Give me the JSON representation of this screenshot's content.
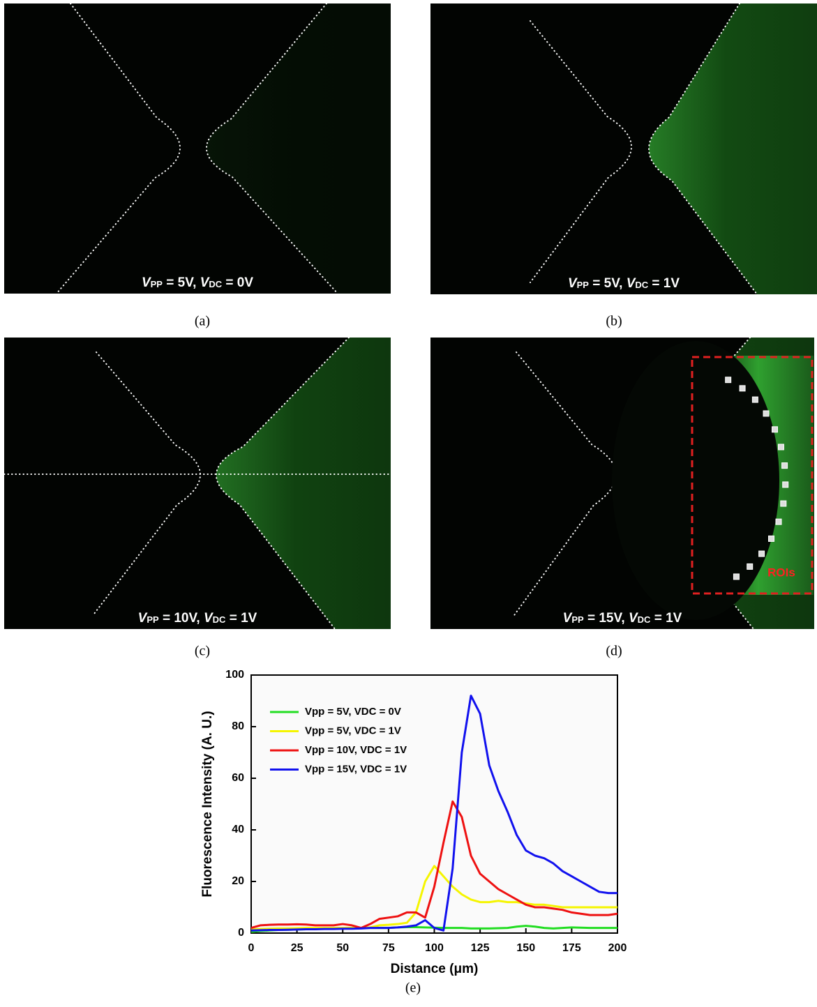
{
  "panels": [
    {
      "caption": "(a)",
      "label": [
        "V",
        "PP",
        " = 5V,  ",
        "V",
        "DC",
        " = 0V"
      ]
    },
    {
      "caption": "(b)",
      "label": [
        "V",
        "PP",
        " = 5V,  ",
        "V",
        "DC",
        " = 1V"
      ]
    },
    {
      "caption": "(c)",
      "label": [
        "V",
        "PP",
        " = 10V,  ",
        "V",
        "DC",
        " = 1V"
      ]
    },
    {
      "caption": "(d)",
      "label": [
        "V",
        "PP",
        " = 15V,  ",
        "V",
        "DC",
        " = 1V"
      ]
    }
  ],
  "inset_label": "ROIs",
  "chart_caption": "(e)",
  "chart_data": {
    "type": "line",
    "x_label": "Distance  (μm)",
    "y_label": "Fluorescence Intensity (A. U.)",
    "x": [
      0,
      5,
      10,
      15,
      20,
      25,
      30,
      35,
      40,
      45,
      50,
      55,
      60,
      65,
      70,
      75,
      80,
      85,
      90,
      95,
      100,
      105,
      110,
      115,
      120,
      125,
      130,
      135,
      140,
      145,
      150,
      155,
      160,
      165,
      170,
      175,
      180,
      185,
      190,
      195,
      200
    ],
    "series": [
      {
        "name": "Vpp = 5V, VDC = 0V",
        "color": "#22dd22",
        "values": [
          0.5,
          0.8,
          1,
          1.2,
          1.3,
          1.4,
          1.5,
          1.6,
          1.7,
          1.8,
          1.9,
          2,
          2,
          2,
          2,
          2,
          2.2,
          2.3,
          2.3,
          2.2,
          2.1,
          2,
          2,
          2,
          1.8,
          1.8,
          1.8,
          1.9,
          2,
          2.5,
          2.8,
          2.5,
          2,
          1.8,
          2,
          2.2,
          2.1,
          2,
          2,
          2,
          2
        ]
      },
      {
        "name": "Vpp = 5V, VDC = 1V",
        "color": "#f5f500",
        "values": [
          1.5,
          1.6,
          1.7,
          1.8,
          1.8,
          1.9,
          2,
          2,
          2,
          2,
          2,
          2,
          2,
          2.2,
          3,
          3.2,
          3.5,
          4,
          8,
          20,
          26,
          22,
          18,
          15,
          13,
          12,
          12,
          12.5,
          12,
          12,
          11.5,
          11,
          11,
          10.5,
          10,
          10,
          10,
          10,
          10,
          10,
          10
        ]
      },
      {
        "name": "Vpp = 10V, VDC = 1V",
        "color": "#ee1111",
        "values": [
          2,
          3,
          3.2,
          3.3,
          3.3,
          3.4,
          3.3,
          3,
          3,
          3,
          3.5,
          3,
          2,
          3.5,
          5.5,
          6,
          6.5,
          8,
          8,
          6,
          18,
          35,
          51,
          45,
          30,
          23,
          20,
          17,
          15,
          13,
          11,
          10,
          10,
          9.5,
          9,
          8,
          7.5,
          7,
          7,
          7,
          7.5
        ]
      },
      {
        "name": "Vpp = 15V, VDC = 1V",
        "color": "#1111ee",
        "values": [
          1,
          1.1,
          1.2,
          1.2,
          1.3,
          1.4,
          1.5,
          1.5,
          1.6,
          1.6,
          1.7,
          1.7,
          1.8,
          2,
          2,
          2,
          2.2,
          2.5,
          3,
          5,
          2,
          1,
          25,
          70,
          92,
          85,
          65,
          55,
          47,
          38,
          32,
          30,
          29,
          27,
          24,
          22,
          20,
          18,
          16,
          15.5,
          15.5
        ]
      }
    ],
    "xlim": [
      0,
      200
    ],
    "xticks": [
      0,
      25,
      50,
      75,
      100,
      125,
      150,
      175,
      200
    ],
    "ylim": [
      0,
      100
    ],
    "yticks": [
      0,
      20,
      40,
      60,
      80,
      100
    ]
  }
}
